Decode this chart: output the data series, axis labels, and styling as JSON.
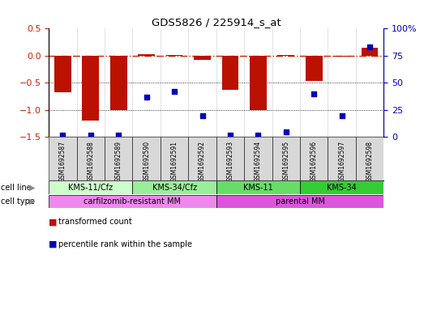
{
  "title": "GDS5826 / 225914_s_at",
  "samples": [
    "GSM1692587",
    "GSM1692588",
    "GSM1692589",
    "GSM1692590",
    "GSM1692591",
    "GSM1692592",
    "GSM1692593",
    "GSM1692594",
    "GSM1692595",
    "GSM1692596",
    "GSM1692597",
    "GSM1692598"
  ],
  "transformed_count": [
    -0.68,
    -1.2,
    -1.0,
    0.03,
    0.01,
    -0.07,
    -0.63,
    -1.0,
    0.01,
    -0.47,
    -0.02,
    0.15
  ],
  "percentile_rank": [
    2,
    2,
    2,
    37,
    42,
    20,
    2,
    2,
    5,
    40,
    20,
    83
  ],
  "ylim_left": [
    -1.5,
    0.5
  ],
  "ylim_right": [
    0,
    100
  ],
  "bar_color": "#bb1100",
  "dot_color": "#0000bb",
  "refline_color": "#cc2200",
  "cell_line_groups": [
    {
      "label": "KMS-11/Cfz",
      "start": 0,
      "end": 2,
      "color": "#ccffcc"
    },
    {
      "label": "KMS-34/Cfz",
      "start": 3,
      "end": 5,
      "color": "#99ee99"
    },
    {
      "label": "KMS-11",
      "start": 6,
      "end": 8,
      "color": "#66dd66"
    },
    {
      "label": "KMS-34",
      "start": 9,
      "end": 11,
      "color": "#33cc33"
    }
  ],
  "cell_type_groups": [
    {
      "label": "carfilzomib-resistant MM",
      "start": 0,
      "end": 5,
      "color": "#ee88ee"
    },
    {
      "label": "parental MM",
      "start": 6,
      "end": 11,
      "color": "#dd55dd"
    }
  ],
  "legend_red": "transformed count",
  "legend_blue": "percentile rank within the sample",
  "label_cell_line": "cell line",
  "label_cell_type": "cell type",
  "tick_left": [
    -1.5,
    -1.0,
    -0.5,
    0.0,
    0.5
  ],
  "tick_right": [
    0,
    25,
    50,
    75,
    100
  ]
}
